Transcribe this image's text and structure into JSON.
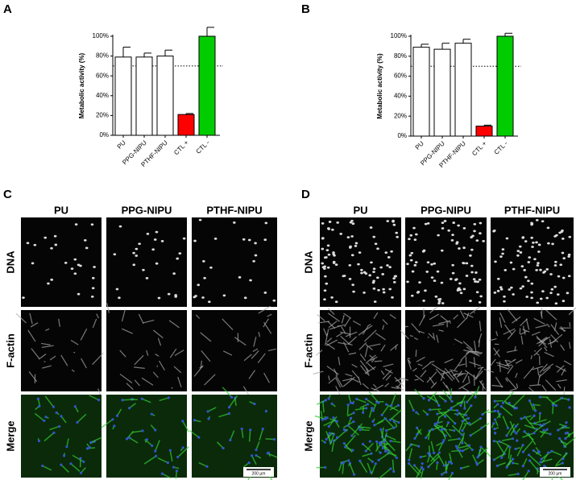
{
  "chart_data": [
    {
      "type": "bar",
      "panel": "A",
      "y_label": "Metabolic activity (%)",
      "categories": [
        "PU",
        "PPG-NIPU",
        "PTHF-NIPU",
        "CTL +",
        "CTL -"
      ],
      "values": [
        79,
        79,
        80,
        21,
        100
      ],
      "errors": [
        10,
        4,
        6,
        1,
        9
      ],
      "colors": [
        "#ffffff",
        "#ffffff",
        "#ffffff",
        "#ff0000",
        "#00cc00"
      ],
      "threshold": 70,
      "ylim": [
        0,
        100
      ],
      "yticks": [
        {
          "value": 0,
          "label": "0%"
        },
        {
          "value": 20,
          "label": "20%"
        },
        {
          "value": 40,
          "label": "40%"
        },
        {
          "value": 60,
          "label": "60%"
        },
        {
          "value": 80,
          "label": "80%"
        },
        {
          "value": 100,
          "label": "100%"
        }
      ]
    },
    {
      "type": "bar",
      "panel": "B",
      "y_label": "Metabolic activity (%)",
      "categories": [
        "PU",
        "PPG-NIPU",
        "PTHF-NIPU",
        "CTL +",
        "CTL -"
      ],
      "values": [
        89,
        87,
        93,
        10,
        100
      ],
      "errors": [
        3,
        6,
        4,
        1,
        3
      ],
      "colors": [
        "#ffffff",
        "#ffffff",
        "#ffffff",
        "#ff0000",
        "#00cc00"
      ],
      "threshold": 70,
      "ylim": [
        0,
        100
      ],
      "yticks": [
        {
          "value": 0,
          "label": "0%"
        },
        {
          "value": 20,
          "label": "20%"
        },
        {
          "value": 40,
          "label": "40%"
        },
        {
          "value": 60,
          "label": "60%"
        },
        {
          "value": 80,
          "label": "80%"
        },
        {
          "value": 100,
          "label": "100%"
        }
      ]
    }
  ],
  "image_panels": [
    {
      "label": "C",
      "columns": [
        "PU",
        "PPG-NIPU",
        "PTHF-NIPU"
      ],
      "rows": [
        "DNA",
        "F-actin",
        "Merge"
      ],
      "scale_bar": "200 µm"
    },
    {
      "label": "D",
      "columns": [
        "PU",
        "PPG-NIPU",
        "PTHF-NIPU"
      ],
      "rows": [
        "DNA",
        "F-actin",
        "Merge"
      ],
      "scale_bar": "200 µm"
    }
  ]
}
